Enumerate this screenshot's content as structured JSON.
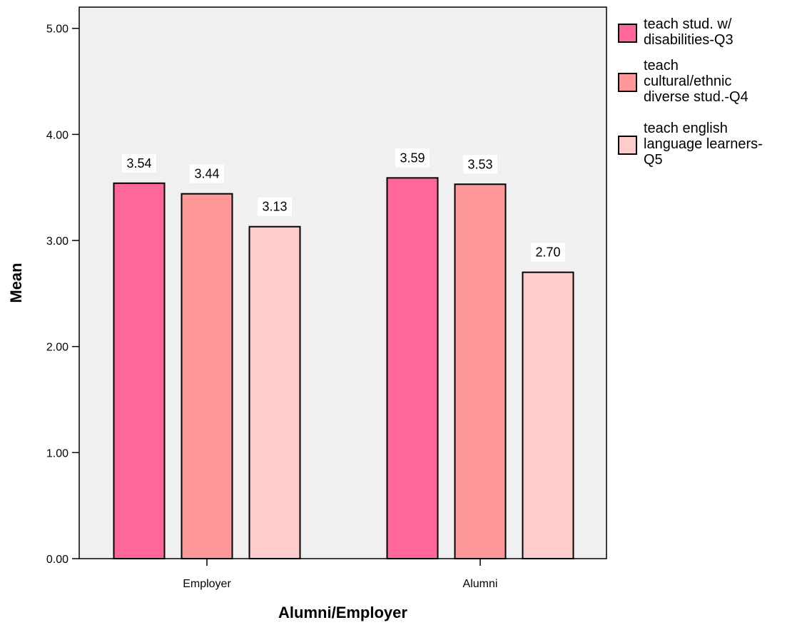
{
  "chart_data": {
    "type": "bar",
    "xlabel": "Alumni/Employer",
    "ylabel": "Mean",
    "categories": [
      "Employer",
      "Alumni"
    ],
    "ylim": [
      0,
      5.2
    ],
    "yticks": [
      "0.00",
      "1.00",
      "2.00",
      "3.00",
      "4.00",
      "5.00"
    ],
    "grid": false,
    "legend_position": "right",
    "series": [
      {
        "name": "teach stud. w/ disabilities-Q3",
        "legend_lines": [
          "teach stud. w/",
          "disabilities-Q3"
        ],
        "color": "#ff6699",
        "values": [
          3.54,
          3.59
        ],
        "labels": [
          "3.54",
          "3.59"
        ]
      },
      {
        "name": "teach cultural/ethnic diverse stud.-Q4",
        "legend_lines": [
          "teach",
          "cultural/ethnic",
          "diverse stud.-Q4"
        ],
        "color": "#ff9999",
        "values": [
          3.44,
          3.53
        ],
        "labels": [
          "3.44",
          "3.53"
        ]
      },
      {
        "name": "teach english language learners-Q5",
        "legend_lines": [
          "teach english",
          "language learners-",
          "Q5"
        ],
        "color": "#ffcccc",
        "values": [
          3.13,
          2.7
        ],
        "labels": [
          "3.13",
          "2.70"
        ]
      }
    ],
    "colors": {
      "plot_background": "#f0f0f0",
      "axis": "#000000"
    }
  }
}
